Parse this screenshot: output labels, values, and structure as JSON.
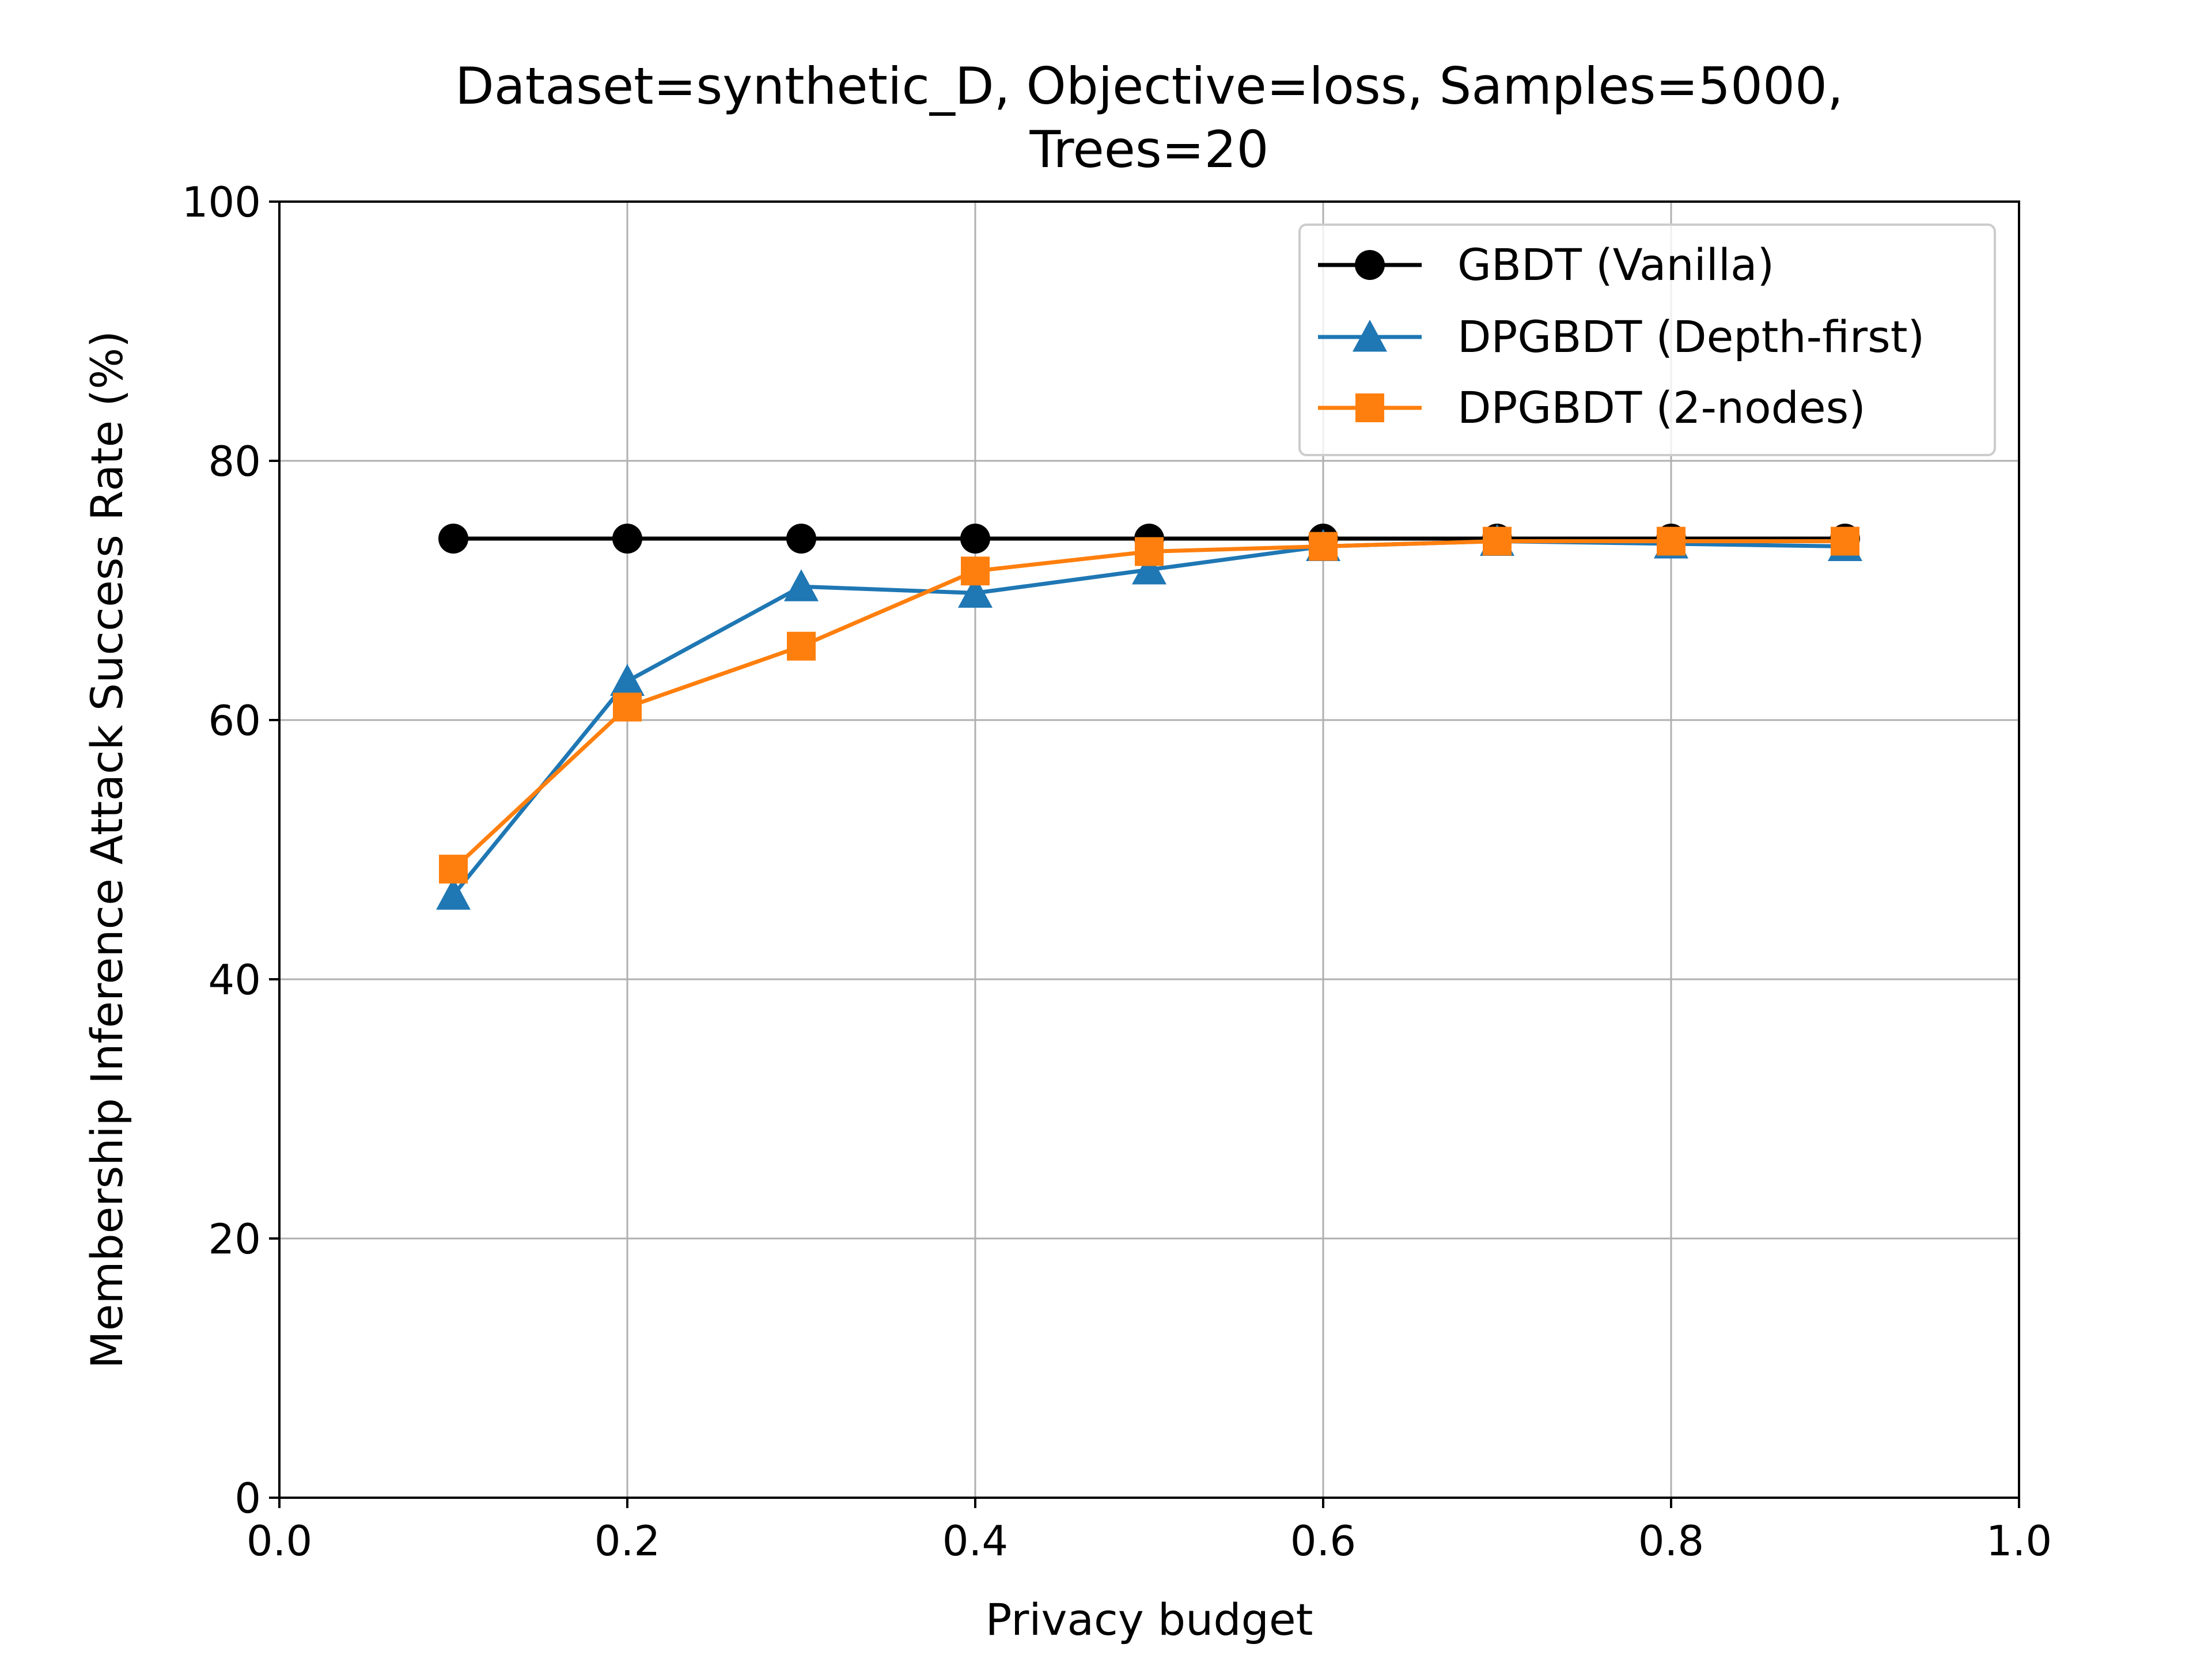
{
  "chart_data": {
    "type": "line",
    "title_lines": [
      "Dataset=synthetic_D, Objective=loss, Samples=5000,",
      "Trees=20"
    ],
    "xlabel": "Privacy budget",
    "ylabel": "Membership Inference Attack Success Rate (%)",
    "xlim": [
      0.0,
      1.0
    ],
    "ylim": [
      0,
      100
    ],
    "xticks": [
      0.0,
      0.2,
      0.4,
      0.6,
      0.8,
      1.0
    ],
    "xtick_labels": [
      "0.0",
      "0.2",
      "0.4",
      "0.6",
      "0.8",
      "1.0"
    ],
    "yticks": [
      0,
      20,
      40,
      60,
      80,
      100
    ],
    "ytick_labels": [
      "0",
      "20",
      "40",
      "60",
      "80",
      "100"
    ],
    "grid": true,
    "legend_position": "top-right",
    "x": [
      0.1,
      0.2,
      0.3,
      0.4,
      0.5,
      0.6,
      0.7,
      0.8,
      0.9
    ],
    "series": [
      {
        "name": "GBDT (Vanilla)",
        "color": "#000000",
        "marker": "circle",
        "values": [
          74.0,
          74.0,
          74.0,
          74.0,
          74.0,
          74.0,
          74.0,
          74.0,
          74.0
        ]
      },
      {
        "name": "DPGBDT (Depth-first)",
        "color": "#1f77b4",
        "marker": "triangle",
        "values": [
          46.5,
          63.0,
          70.3,
          69.8,
          71.6,
          73.4,
          73.8,
          73.6,
          73.4
        ]
      },
      {
        "name": "DPGBDT (2-nodes)",
        "color": "#ff7f0e",
        "marker": "square",
        "values": [
          48.5,
          61.0,
          65.7,
          71.5,
          73.0,
          73.4,
          73.8,
          73.8,
          73.8
        ]
      }
    ]
  }
}
